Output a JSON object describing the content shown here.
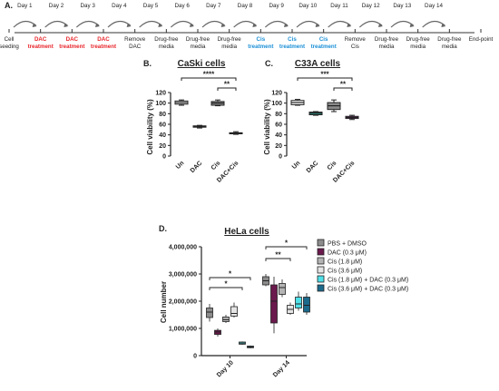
{
  "timeline": {
    "panel_label": "A.",
    "days": [
      "Day 1",
      "Day 2",
      "Day 3",
      "Day 4",
      "Day 5",
      "Day 6",
      "Day 7",
      "Day 8",
      "Day 9",
      "Day 10",
      "Day 11",
      "Day 12",
      "Day 13",
      "Day 14"
    ],
    "stages": [
      {
        "lines": [
          "Cell",
          "seeding"
        ],
        "color": "#222222",
        "bold": false
      },
      {
        "lines": [
          "DAC",
          "treatment"
        ],
        "color": "#e8252a",
        "bold": true
      },
      {
        "lines": [
          "DAC",
          "treatment"
        ],
        "color": "#e8252a",
        "bold": true
      },
      {
        "lines": [
          "DAC",
          "treatment"
        ],
        "color": "#e8252a",
        "bold": true
      },
      {
        "lines": [
          "Remove",
          "DAC"
        ],
        "color": "#222222",
        "bold": false
      },
      {
        "lines": [
          "Drug-free",
          "media"
        ],
        "color": "#222222",
        "bold": false
      },
      {
        "lines": [
          "Drug-free",
          "media"
        ],
        "color": "#222222",
        "bold": false
      },
      {
        "lines": [
          "Drug-free",
          "media"
        ],
        "color": "#222222",
        "bold": false
      },
      {
        "lines": [
          "Cis",
          "treatment"
        ],
        "color": "#1a8fd6",
        "bold": true
      },
      {
        "lines": [
          "Cis",
          "treatment"
        ],
        "color": "#1a8fd6",
        "bold": true
      },
      {
        "lines": [
          "Cis",
          "treatment"
        ],
        "color": "#1a8fd6",
        "bold": true
      },
      {
        "lines": [
          "Remove",
          "Cis"
        ],
        "color": "#222222",
        "bold": false
      },
      {
        "lines": [
          "Drug-free",
          "media"
        ],
        "color": "#222222",
        "bold": false
      },
      {
        "lines": [
          "Drug-free",
          "media"
        ],
        "color": "#222222",
        "bold": false
      },
      {
        "lines": [
          "Drug-free",
          "media"
        ],
        "color": "#222222",
        "bold": false
      },
      {
        "lines": [
          "End-point"
        ],
        "color": "#222222",
        "bold": false
      }
    ]
  },
  "chart_data": [
    {
      "type": "box",
      "panel_label": "B.",
      "title": "CaSki cells",
      "ylabel": "Cell viability (%)",
      "ylim": [
        0,
        120
      ],
      "yticks": [
        0,
        20,
        40,
        60,
        80,
        100,
        120
      ],
      "categories": [
        "Un",
        "DAC",
        "Cis",
        "DAC+Cis"
      ],
      "colors": [
        "#ffffff",
        "#2d9a8f",
        "#8a8a8a",
        "#b830b8"
      ],
      "boxes": [
        {
          "min": 96,
          "q1": 98,
          "median": 101,
          "q3": 104,
          "max": 106
        },
        {
          "min": 53,
          "q1": 54.5,
          "median": 56,
          "q3": 57,
          "max": 58
        },
        {
          "min": 95,
          "q1": 96,
          "median": 100,
          "q3": 103,
          "max": 106
        },
        {
          "min": 41,
          "q1": 42,
          "median": 43,
          "q3": 44,
          "max": 46
        }
      ],
      "significance": [
        {
          "from": 0,
          "to": 3,
          "label": "****"
        },
        {
          "from": 2,
          "to": 3,
          "label": "**"
        }
      ]
    },
    {
      "type": "box",
      "panel_label": "C.",
      "title": "C33A cells",
      "ylabel": "Cell viability (%)",
      "ylim": [
        0,
        120
      ],
      "yticks": [
        0,
        20,
        40,
        60,
        80,
        100,
        120
      ],
      "categories": [
        "Un",
        "DAC",
        "Cis",
        "DAC+Cis"
      ],
      "colors": [
        "#ffffff",
        "#2d9a8f",
        "#8a8a8a",
        "#b830b8"
      ],
      "boxes": [
        {
          "min": 96,
          "q1": 97,
          "median": 101,
          "q3": 105,
          "max": 107
        },
        {
          "min": 77,
          "q1": 78,
          "median": 81,
          "q3": 83,
          "max": 84
        },
        {
          "min": 84,
          "q1": 88,
          "median": 95,
          "q3": 101,
          "max": 106
        },
        {
          "min": 69,
          "q1": 71,
          "median": 73,
          "q3": 75,
          "max": 77
        }
      ],
      "significance": [
        {
          "from": 0,
          "to": 3,
          "label": "***"
        },
        {
          "from": 2,
          "to": 3,
          "label": "**"
        }
      ]
    },
    {
      "type": "box",
      "panel_label": "D.",
      "title": "HeLa cells",
      "ylabel": "Cell number",
      "ylim": [
        0,
        4000000
      ],
      "yticks": [
        0,
        1000000,
        2000000,
        3000000,
        4000000
      ],
      "ytick_labels": [
        "0",
        "1,000,000",
        "2,000,000",
        "3,000,000",
        "4,000,000"
      ],
      "categories": [
        "Day 10",
        "Day 14"
      ],
      "series": [
        {
          "name": "PBS + DMSO",
          "color": "#8c8c8c"
        },
        {
          "name": "DAC (0.3 μM)",
          "color": "#6a1a4c"
        },
        {
          "name": "Cis (1.8 μM)",
          "color": "#b4b4b4"
        },
        {
          "name": "Cis (3.6 μM)",
          "color": "#e4e4e4"
        },
        {
          "name": "Cis (1.8 μM) + DAC (0.3 μM)",
          "color": "#4fe0e8"
        },
        {
          "name": "Cis (3.6 μM) + DAC (0.3 μM)",
          "color": "#1b6a8c"
        }
      ],
      "boxes": [
        [
          {
            "min": 1250000,
            "q1": 1400000,
            "median": 1600000,
            "q3": 1750000,
            "max": 1900000
          },
          {
            "min": 700000,
            "q1": 780000,
            "median": 870000,
            "q3": 930000,
            "max": 1000000
          },
          {
            "min": 1200000,
            "q1": 1250000,
            "median": 1320000,
            "q3": 1420000,
            "max": 1500000
          },
          {
            "min": 1400000,
            "q1": 1450000,
            "median": 1550000,
            "q3": 1800000,
            "max": 1950000
          },
          {
            "min": 400000,
            "q1": 420000,
            "median": 460000,
            "q3": 500000,
            "max": 520000
          },
          {
            "min": 270000,
            "q1": 290000,
            "median": 320000,
            "q3": 350000,
            "max": 370000
          }
        ],
        [
          {
            "min": 2550000,
            "q1": 2600000,
            "median": 2750000,
            "q3": 2900000,
            "max": 3000000
          },
          {
            "min": 820000,
            "q1": 1200000,
            "median": 2000000,
            "q3": 2600000,
            "max": 2900000
          },
          {
            "min": 2150000,
            "q1": 2250000,
            "median": 2500000,
            "q3": 2650000,
            "max": 2800000
          },
          {
            "min": 1500000,
            "q1": 1550000,
            "median": 1700000,
            "q3": 1850000,
            "max": 1950000
          },
          {
            "min": 1650000,
            "q1": 1750000,
            "median": 1900000,
            "q3": 2150000,
            "max": 2350000
          },
          {
            "min": 1500000,
            "q1": 1600000,
            "median": 1850000,
            "q3": 2150000,
            "max": 2300000
          }
        ]
      ],
      "significance": [
        {
          "group": 0,
          "from": 0,
          "to": 5,
          "label": "*"
        },
        {
          "group": 0,
          "from": 0,
          "to": 4,
          "label": "*"
        },
        {
          "group": 1,
          "from": 0,
          "to": 5,
          "label": "*"
        },
        {
          "group": 1,
          "from": 0,
          "to": 3,
          "label": "**"
        }
      ]
    }
  ]
}
